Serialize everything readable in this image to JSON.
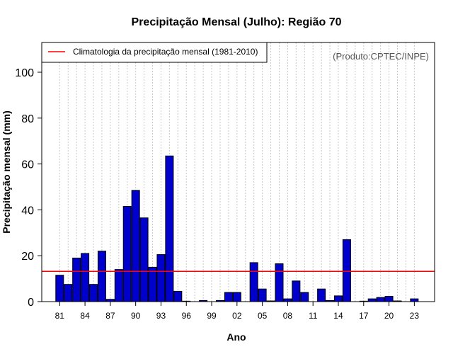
{
  "colors": {
    "bar_fill": "#0000cc",
    "bar_stroke": "#000000",
    "climatology_line": "#ff0000",
    "grid": "#c8c8c8",
    "credit": "#555555"
  },
  "chart_data": {
    "type": "bar",
    "title": "Precipitação Mensal (Julho): Região 70",
    "xlabel": "Ano",
    "ylabel": "Precipitação mensal (mm)",
    "credit": "(Produto:CPTEC/INPE)",
    "legend": {
      "placement": "top-left",
      "entries": [
        {
          "label": "Climatologia da precipitação mensal (1981-2010)",
          "color": "#ff0000"
        }
      ]
    },
    "ylim": [
      0,
      110
    ],
    "yticks": [
      0,
      20,
      40,
      60,
      80,
      100
    ],
    "grid": "vertical dotted",
    "categories": [
      "81",
      "82",
      "83",
      "84",
      "85",
      "86",
      "87",
      "88",
      "89",
      "90",
      "91",
      "92",
      "93",
      "94",
      "95",
      "96",
      "97",
      "98",
      "99",
      "00",
      "01",
      "02",
      "03",
      "04",
      "05",
      "06",
      "07",
      "08",
      "09",
      "10",
      "11",
      "12",
      "13",
      "14",
      "15",
      "16",
      "17",
      "18",
      "19",
      "20",
      "21",
      "22",
      "23"
    ],
    "xtick_labels": [
      "81",
      "84",
      "87",
      "90",
      "93",
      "96",
      "99",
      "02",
      "05",
      "08",
      "11",
      "14",
      "17",
      "20",
      "23"
    ],
    "xtick_indices": [
      0,
      3,
      6,
      9,
      12,
      15,
      18,
      21,
      24,
      27,
      30,
      33,
      36,
      39,
      42
    ],
    "values": [
      11.5,
      7.5,
      19,
      21,
      7.5,
      22,
      1,
      14,
      41.5,
      48.5,
      36.5,
      15,
      20.5,
      63.5,
      4.5,
      0.2,
      0,
      0.5,
      0,
      0.5,
      4,
      4,
      0,
      17,
      5.5,
      0.3,
      16.5,
      1.2,
      9,
      4,
      0,
      5.5,
      0.5,
      2.5,
      27,
      0,
      0.2,
      1.2,
      1.8,
      2.3,
      0.3,
      0,
      1.2
    ],
    "climatology": 13.2
  }
}
